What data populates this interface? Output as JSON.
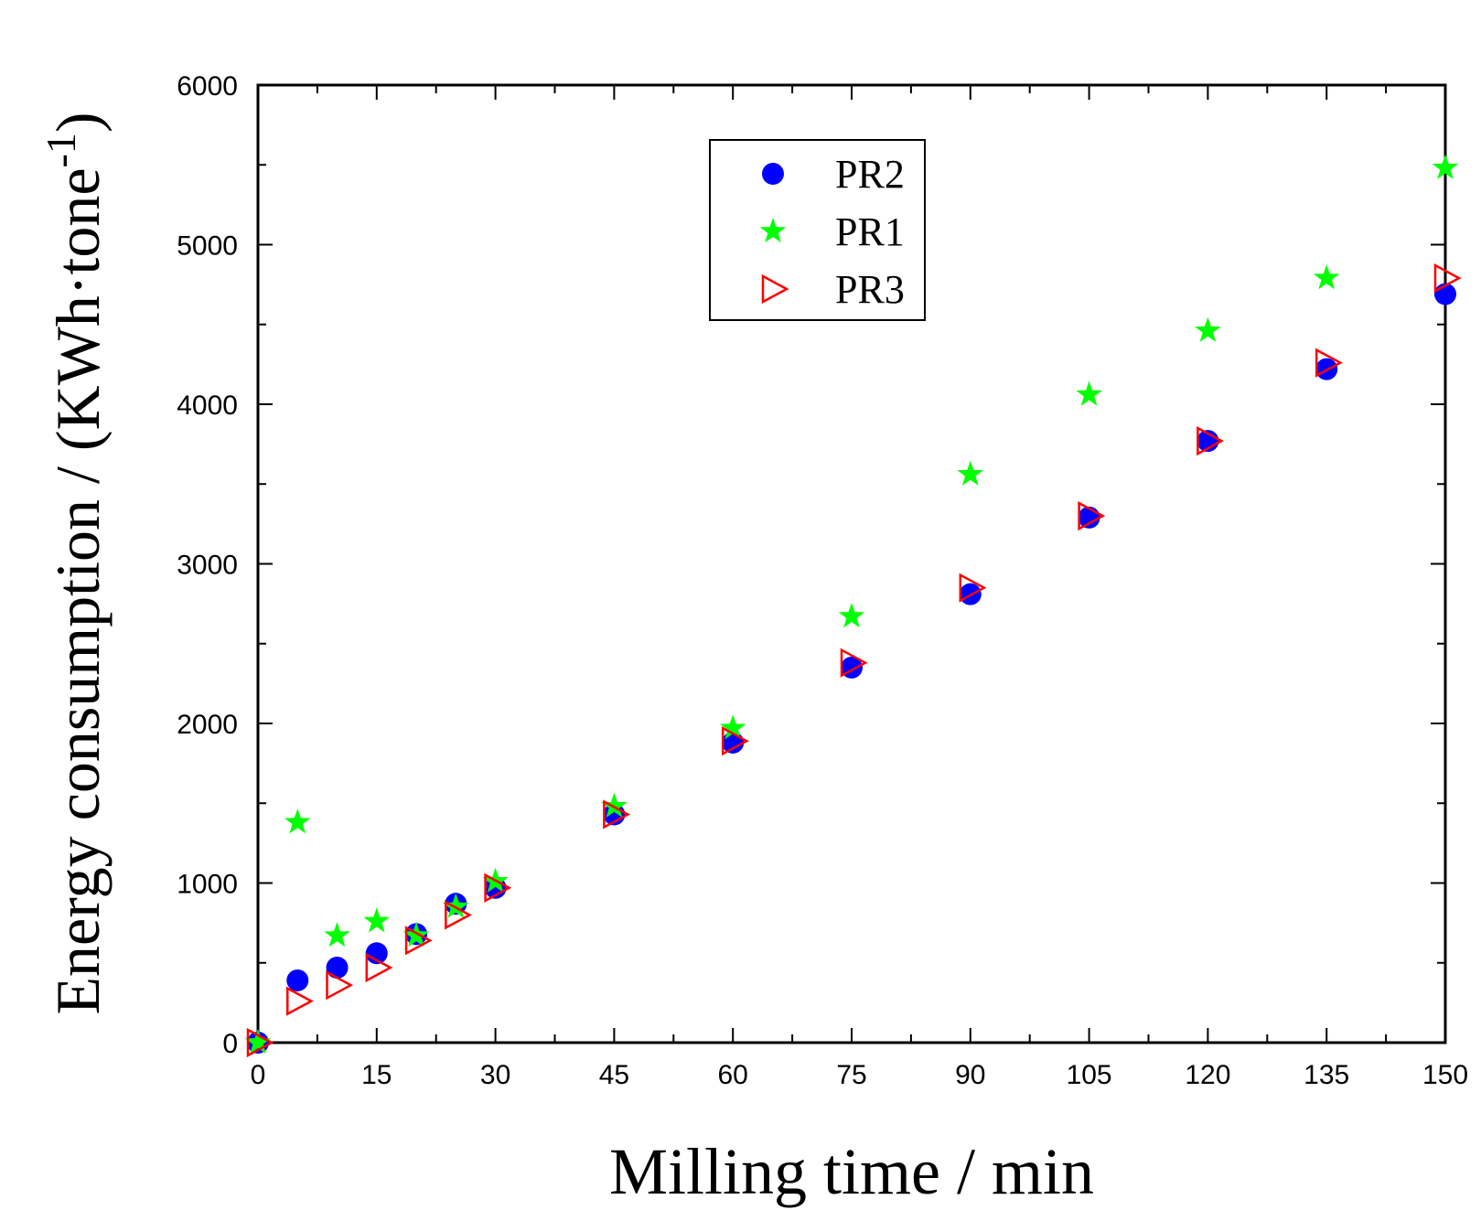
{
  "chart_data": {
    "type": "scatter",
    "xlabel": "Milling time / min",
    "ylabel_main": "Energy consumption / (KWh·tone",
    "ylabel_sup": "-1",
    "ylabel_close": ")",
    "xlim": [
      0,
      150
    ],
    "ylim": [
      0,
      6000
    ],
    "xticks": [
      0,
      15,
      30,
      45,
      60,
      75,
      90,
      105,
      120,
      135,
      150
    ],
    "yticks": [
      0,
      1000,
      2000,
      3000,
      4000,
      5000,
      6000
    ],
    "xtick_labels": [
      "0",
      "15",
      "30",
      "45",
      "60",
      "75",
      "90",
      "105",
      "120",
      "135",
      "150"
    ],
    "ytick_labels": [
      "0",
      "1000",
      "2000",
      "3000",
      "4000",
      "5000",
      "6000"
    ],
    "legend_position": "top-center",
    "series": [
      {
        "name": "PR2",
        "marker": "circle",
        "color": "#0000ff",
        "x": [
          0,
          5,
          10,
          15,
          20,
          25,
          30,
          45,
          60,
          75,
          90,
          105,
          120,
          135,
          150
        ],
        "y": [
          0,
          390,
          470,
          560,
          680,
          870,
          970,
          1430,
          1880,
          2350,
          2810,
          3290,
          3770,
          4220,
          4690
        ]
      },
      {
        "name": "PR1",
        "marker": "star",
        "color": "#00ff00",
        "x": [
          0,
          5,
          10,
          15,
          20,
          25,
          30,
          45,
          60,
          75,
          90,
          105,
          120,
          135,
          150
        ],
        "y": [
          0,
          1380,
          670,
          760,
          670,
          850,
          1010,
          1480,
          1970,
          2670,
          3560,
          4060,
          4460,
          4790,
          5480
        ]
      },
      {
        "name": "PR3",
        "marker": "triangle-right",
        "color": "#ff0000",
        "x": [
          0,
          5,
          10,
          15,
          20,
          25,
          30,
          45,
          60,
          75,
          90,
          105,
          120,
          135,
          150
        ],
        "y": [
          0,
          260,
          360,
          470,
          640,
          800,
          970,
          1430,
          1890,
          2380,
          2850,
          3300,
          3770,
          4260,
          4790
        ]
      }
    ]
  }
}
